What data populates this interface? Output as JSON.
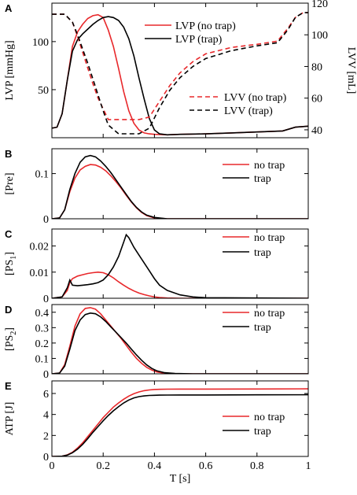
{
  "xlabel": "T [s]",
  "colors": {
    "no_trap": "#e8282b",
    "trap": "#000000"
  },
  "chart_data": [
    {
      "panel": "A",
      "type": "line",
      "ylabel": "LVP [mmHg]",
      "y2label": "LVV [mL]",
      "xlim": [
        0,
        1
      ],
      "ylim": [
        0,
        140
      ],
      "y2lim": [
        35,
        120
      ],
      "xticks": [
        0,
        0.2,
        0.4,
        0.6,
        0.8,
        1
      ],
      "xtick_labels": [
        "0",
        "0.2",
        "0.4",
        "0.6",
        "0.8",
        "1"
      ],
      "yticks": [
        50,
        100
      ],
      "ytick_labels": [
        "50",
        "100"
      ],
      "y2ticks": [
        40,
        60,
        80,
        100,
        120
      ],
      "y2tick_labels": [
        "40",
        "60",
        "80",
        "100",
        "120"
      ],
      "series": [
        {
          "name": "LVP (no trap)",
          "axis": "left",
          "style": "solid",
          "color_key": "no_trap",
          "x": [
            0,
            0.02,
            0.04,
            0.06,
            0.08,
            0.1,
            0.12,
            0.14,
            0.16,
            0.18,
            0.2,
            0.22,
            0.24,
            0.26,
            0.28,
            0.3,
            0.32,
            0.34,
            0.36,
            0.38,
            0.4,
            0.45,
            0.5,
            0.6,
            0.7,
            0.8,
            0.9,
            0.95,
            1.0
          ],
          "y": [
            10,
            11,
            25,
            60,
            95,
            110,
            118,
            124,
            127,
            128,
            125,
            112,
            95,
            72,
            48,
            28,
            15,
            8,
            5,
            4,
            3.5,
            3,
            3.5,
            4,
            5,
            6,
            7,
            11,
            12
          ]
        },
        {
          "name": "LVP (trap)",
          "axis": "left",
          "style": "solid",
          "color_key": "trap",
          "x": [
            0,
            0.02,
            0.04,
            0.06,
            0.08,
            0.1,
            0.12,
            0.14,
            0.16,
            0.18,
            0.2,
            0.22,
            0.24,
            0.26,
            0.28,
            0.3,
            0.32,
            0.34,
            0.36,
            0.38,
            0.4,
            0.42,
            0.45,
            0.5,
            0.6,
            0.7,
            0.8,
            0.9,
            0.95,
            1.0
          ],
          "y": [
            10,
            11,
            25,
            60,
            90,
            102,
            108,
            113,
            118,
            122,
            125,
            126,
            125,
            122,
            115,
            103,
            85,
            62,
            40,
            20,
            8,
            4,
            3,
            3.5,
            4,
            5,
            6,
            7,
            11,
            12
          ]
        },
        {
          "name": "LVV (no trap)",
          "axis": "right",
          "style": "dashed",
          "color_key": "no_trap",
          "x": [
            0,
            0.05,
            0.08,
            0.1,
            0.12,
            0.14,
            0.16,
            0.18,
            0.22,
            0.3,
            0.34,
            0.38,
            0.42,
            0.46,
            0.5,
            0.55,
            0.6,
            0.7,
            0.8,
            0.88,
            0.92,
            0.95,
            0.98,
            1.0
          ],
          "y": [
            113,
            113,
            108,
            99,
            89,
            79,
            69,
            60,
            46.5,
            46.5,
            46.5,
            48,
            58,
            68,
            76,
            83,
            88,
            92,
            94,
            96,
            104,
            111,
            114,
            114
          ]
        },
        {
          "name": "LVV (trap)",
          "axis": "right",
          "style": "dashed",
          "color_key": "trap",
          "x": [
            0,
            0.05,
            0.08,
            0.1,
            0.12,
            0.14,
            0.16,
            0.18,
            0.2,
            0.22,
            0.26,
            0.3,
            0.34,
            0.38,
            0.42,
            0.46,
            0.5,
            0.55,
            0.6,
            0.7,
            0.8,
            0.88,
            0.92,
            0.95,
            0.98,
            1.0
          ],
          "y": [
            113,
            113,
            108,
            100,
            91,
            82,
            72,
            62,
            52,
            43,
            37.5,
            37.5,
            37.5,
            41,
            54,
            65,
            73,
            80,
            85,
            90,
            93,
            95,
            103,
            111,
            114,
            114
          ]
        }
      ]
    },
    {
      "panel": "B",
      "type": "line",
      "ylabel": "[Pre]",
      "xlim": [
        0,
        1
      ],
      "ylim": [
        0,
        0.155
      ],
      "yticks": [
        0,
        0.1
      ],
      "ytick_labels": [
        "0",
        "0.1"
      ],
      "series": [
        {
          "name": "no trap",
          "color_key": "no_trap",
          "x": [
            0,
            0.03,
            0.05,
            0.07,
            0.09,
            0.11,
            0.13,
            0.15,
            0.17,
            0.19,
            0.21,
            0.23,
            0.25,
            0.27,
            0.29,
            0.31,
            0.33,
            0.35,
            0.37,
            0.4,
            0.45,
            1.0
          ],
          "y": [
            0,
            0.002,
            0.02,
            0.06,
            0.09,
            0.108,
            0.116,
            0.12,
            0.119,
            0.114,
            0.106,
            0.095,
            0.082,
            0.068,
            0.052,
            0.037,
            0.024,
            0.014,
            0.007,
            0.002,
            0,
            0
          ]
        },
        {
          "name": "trap",
          "color_key": "trap",
          "x": [
            0,
            0.03,
            0.05,
            0.07,
            0.09,
            0.11,
            0.13,
            0.15,
            0.17,
            0.19,
            0.21,
            0.23,
            0.25,
            0.27,
            0.29,
            0.31,
            0.33,
            0.35,
            0.37,
            0.4,
            0.45,
            1.0
          ],
          "y": [
            0,
            0.002,
            0.02,
            0.065,
            0.1,
            0.125,
            0.137,
            0.14,
            0.137,
            0.128,
            0.116,
            0.102,
            0.086,
            0.07,
            0.054,
            0.038,
            0.025,
            0.015,
            0.008,
            0.003,
            0,
            0
          ]
        }
      ]
    },
    {
      "panel": "C",
      "type": "line",
      "ylabel": "[PS1]",
      "xlim": [
        0,
        1
      ],
      "ylim": [
        0,
        0.0265
      ],
      "yticks": [
        0,
        0.01,
        0.02
      ],
      "ytick_labels": [
        "0",
        "0.01",
        "0.02"
      ],
      "series": [
        {
          "name": "no trap",
          "color_key": "no_trap",
          "x": [
            0,
            0.04,
            0.06,
            0.07,
            0.08,
            0.1,
            0.12,
            0.14,
            0.16,
            0.18,
            0.2,
            0.22,
            0.24,
            0.26,
            0.28,
            0.3,
            0.32,
            0.34,
            0.36,
            0.38,
            0.4,
            0.42,
            0.45,
            0.5,
            1.0
          ],
          "y": [
            0,
            0.0005,
            0.003,
            0.006,
            0.0075,
            0.0085,
            0.009,
            0.0095,
            0.0098,
            0.01,
            0.0098,
            0.009,
            0.0078,
            0.0063,
            0.005,
            0.0038,
            0.0028,
            0.002,
            0.0014,
            0.0009,
            0.0005,
            0.0003,
            0.0001,
            0,
            0
          ]
        },
        {
          "name": "trap",
          "color_key": "trap",
          "x": [
            0,
            0.04,
            0.06,
            0.07,
            0.08,
            0.1,
            0.12,
            0.14,
            0.16,
            0.18,
            0.2,
            0.22,
            0.24,
            0.26,
            0.28,
            0.29,
            0.3,
            0.32,
            0.34,
            0.36,
            0.38,
            0.4,
            0.42,
            0.45,
            0.5,
            0.55,
            0.6,
            1.0
          ],
          "y": [
            0,
            0.0005,
            0.004,
            0.007,
            0.005,
            0.0048,
            0.005,
            0.0052,
            0.0055,
            0.006,
            0.007,
            0.009,
            0.012,
            0.016,
            0.0215,
            0.0243,
            0.0232,
            0.0195,
            0.0165,
            0.0135,
            0.0105,
            0.0075,
            0.005,
            0.003,
            0.0013,
            0.0005,
            0.0002,
            0
          ]
        }
      ]
    },
    {
      "panel": "D",
      "type": "line",
      "ylabel": "[PS2]",
      "xlim": [
        0,
        1
      ],
      "ylim": [
        0,
        0.45
      ],
      "yticks": [
        0,
        0.1,
        0.2,
        0.3,
        0.4
      ],
      "ytick_labels": [
        "0",
        "0.1",
        "0.2",
        "0.3",
        "0.4"
      ],
      "series": [
        {
          "name": "no trap",
          "color_key": "no_trap",
          "x": [
            0,
            0.03,
            0.05,
            0.07,
            0.09,
            0.11,
            0.13,
            0.15,
            0.17,
            0.19,
            0.21,
            0.23,
            0.25,
            0.27,
            0.29,
            0.31,
            0.33,
            0.35,
            0.37,
            0.39,
            0.41,
            0.44,
            0.48,
            0.55,
            1.0
          ],
          "y": [
            0,
            0.005,
            0.06,
            0.18,
            0.31,
            0.39,
            0.425,
            0.43,
            0.42,
            0.39,
            0.35,
            0.31,
            0.27,
            0.23,
            0.185,
            0.14,
            0.1,
            0.068,
            0.042,
            0.024,
            0.012,
            0.004,
            0.001,
            0,
            0
          ]
        },
        {
          "name": "trap",
          "color_key": "trap",
          "x": [
            0,
            0.03,
            0.05,
            0.07,
            0.09,
            0.11,
            0.13,
            0.15,
            0.17,
            0.19,
            0.21,
            0.23,
            0.25,
            0.27,
            0.29,
            0.31,
            0.33,
            0.35,
            0.37,
            0.39,
            0.41,
            0.44,
            0.48,
            0.55,
            1.0
          ],
          "y": [
            0,
            0.005,
            0.05,
            0.16,
            0.28,
            0.35,
            0.385,
            0.395,
            0.39,
            0.37,
            0.34,
            0.305,
            0.27,
            0.235,
            0.2,
            0.16,
            0.122,
            0.088,
            0.058,
            0.035,
            0.019,
            0.007,
            0.002,
            0,
            0
          ]
        }
      ]
    },
    {
      "panel": "E",
      "type": "line",
      "ylabel": "ATP [J]",
      "xlim": [
        0,
        1
      ],
      "ylim": [
        0,
        7.2
      ],
      "yticks": [
        0,
        2,
        4,
        6
      ],
      "ytick_labels": [
        "0",
        "2",
        "4",
        "6"
      ],
      "series": [
        {
          "name": "no trap",
          "color_key": "no_trap",
          "x": [
            0,
            0.04,
            0.06,
            0.08,
            0.1,
            0.12,
            0.14,
            0.16,
            0.18,
            0.2,
            0.22,
            0.24,
            0.26,
            0.28,
            0.3,
            0.32,
            0.34,
            0.36,
            0.38,
            0.4,
            0.42,
            0.45,
            0.5,
            0.6,
            0.8,
            1.0
          ],
          "y": [
            0,
            0.02,
            0.15,
            0.4,
            0.8,
            1.3,
            1.9,
            2.5,
            3.1,
            3.7,
            4.2,
            4.7,
            5.1,
            5.45,
            5.75,
            5.98,
            6.15,
            6.27,
            6.34,
            6.38,
            6.4,
            6.41,
            6.42,
            6.42,
            6.43,
            6.44
          ]
        },
        {
          "name": "trap",
          "color_key": "trap",
          "x": [
            0,
            0.04,
            0.06,
            0.08,
            0.1,
            0.12,
            0.14,
            0.16,
            0.18,
            0.2,
            0.22,
            0.24,
            0.26,
            0.28,
            0.3,
            0.32,
            0.34,
            0.36,
            0.38,
            0.4,
            0.42,
            0.45,
            0.5,
            0.6,
            0.8,
            1.0
          ],
          "y": [
            0,
            0.02,
            0.13,
            0.35,
            0.7,
            1.15,
            1.7,
            2.3,
            2.85,
            3.4,
            3.9,
            4.35,
            4.75,
            5.1,
            5.38,
            5.58,
            5.7,
            5.77,
            5.81,
            5.83,
            5.84,
            5.85,
            5.86,
            5.86,
            5.87,
            5.88
          ]
        }
      ]
    }
  ]
}
